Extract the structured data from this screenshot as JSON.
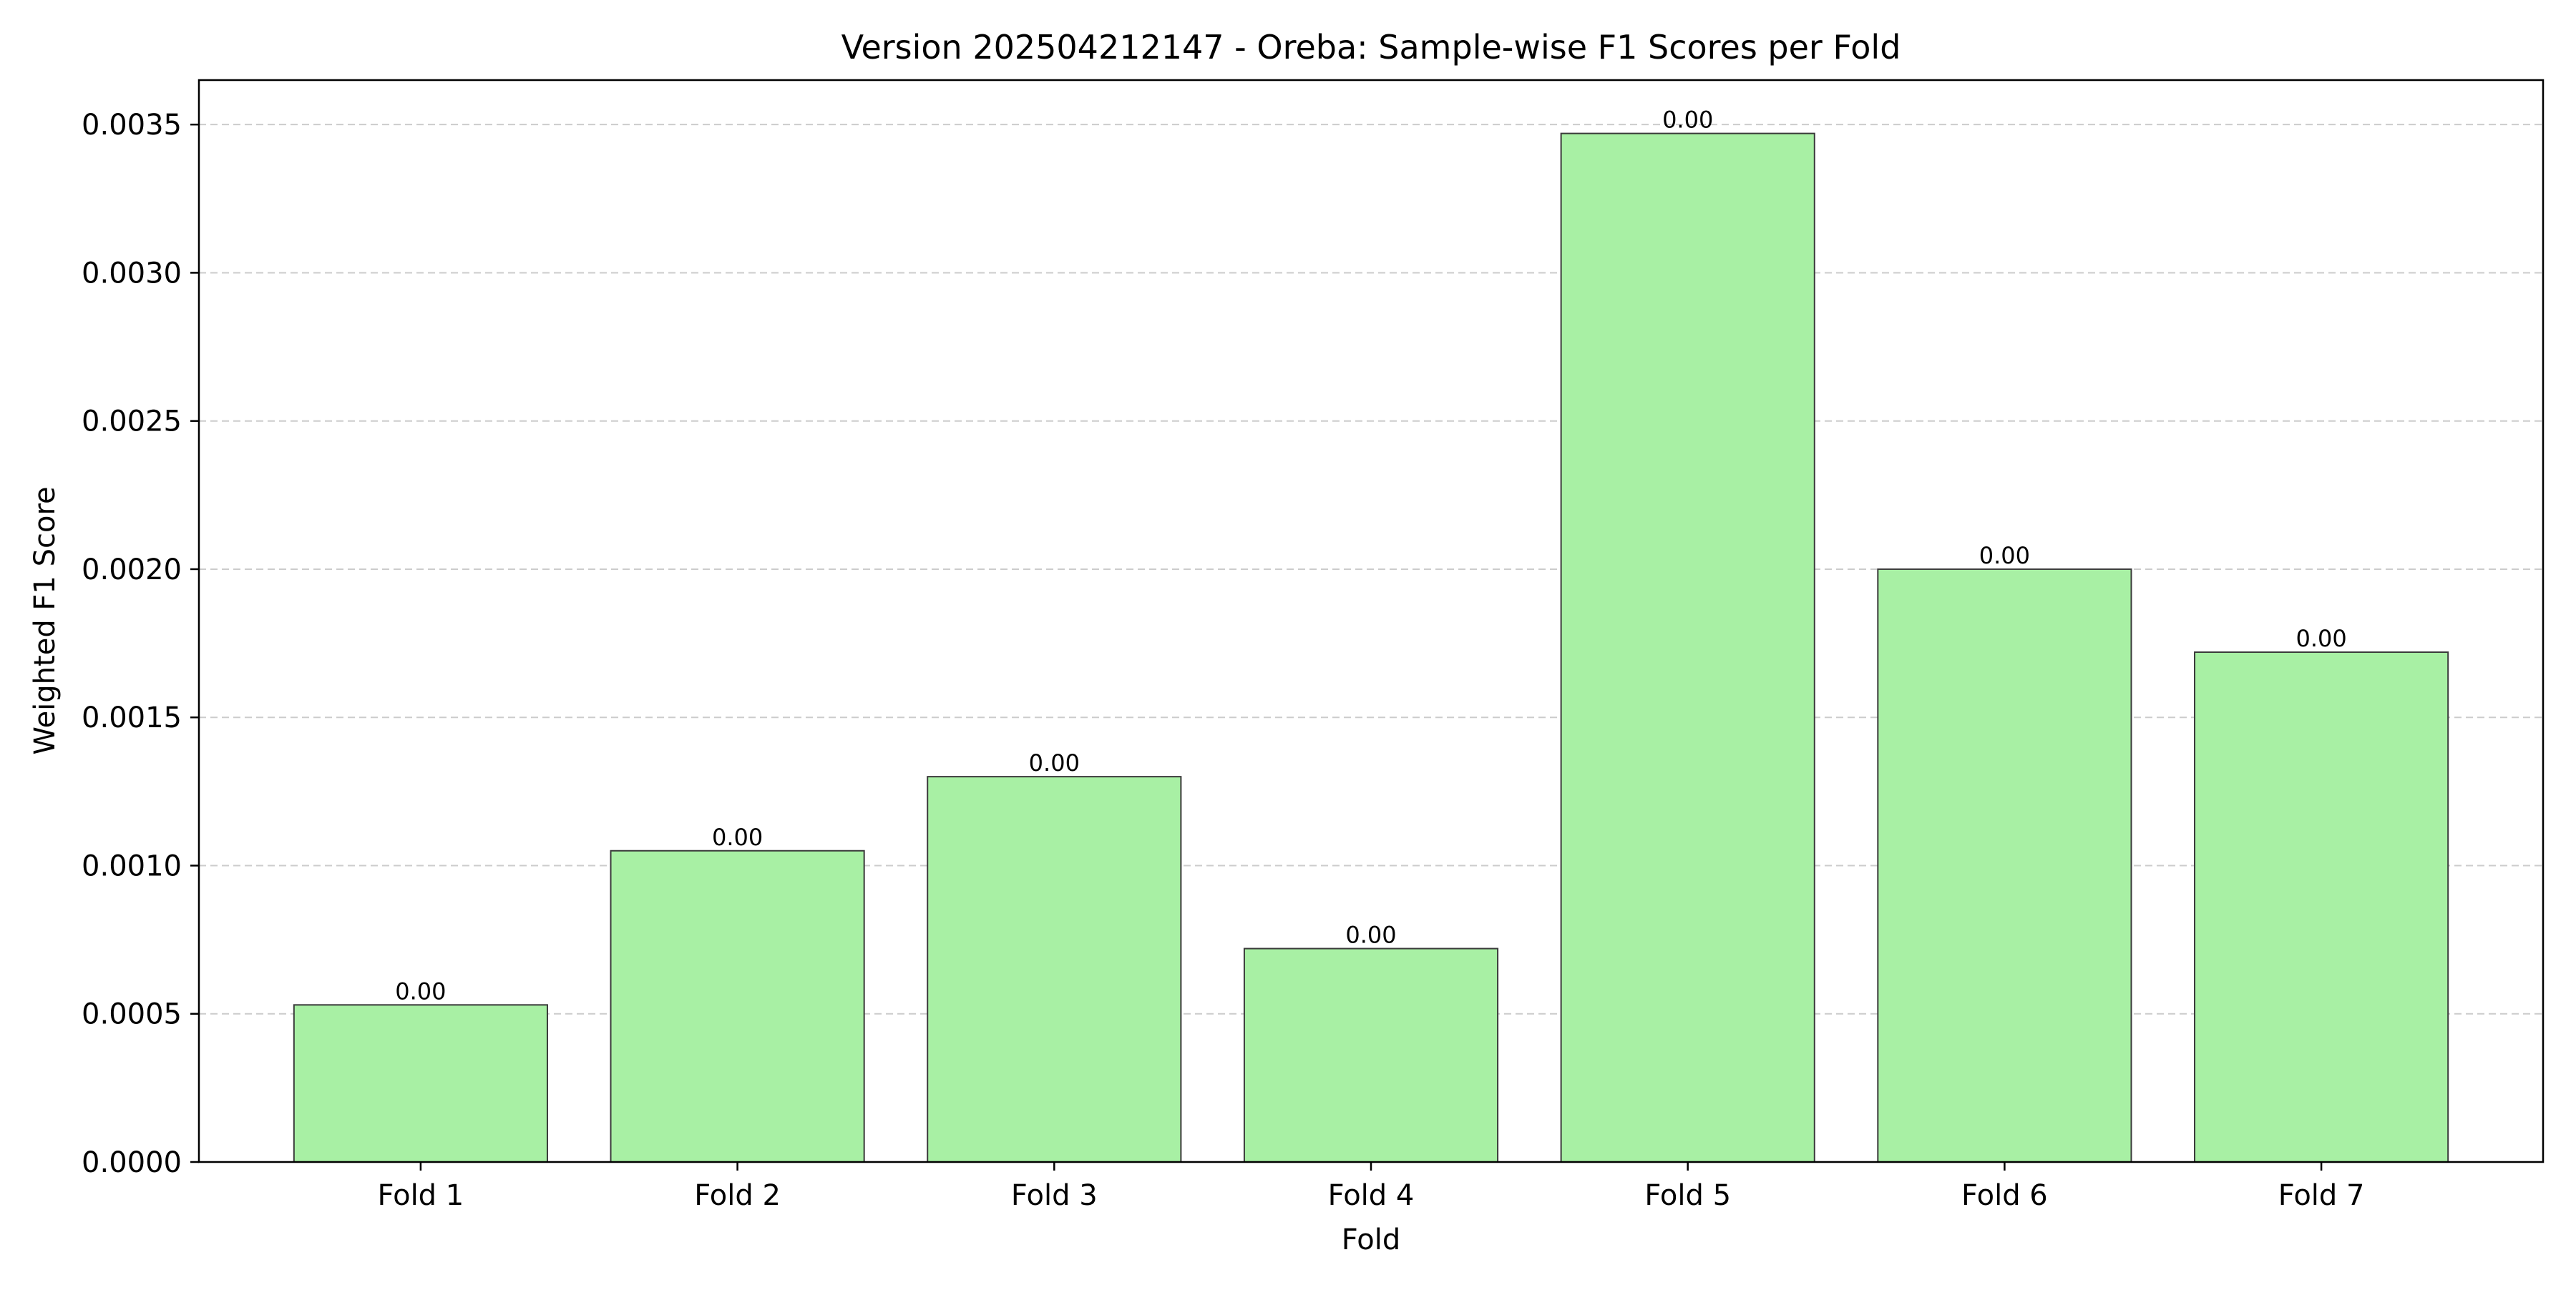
{
  "chart_data": {
    "type": "bar",
    "title": "Version 202504212147 - Oreba: Sample-wise F1 Scores per Fold",
    "xlabel": "Fold",
    "ylabel": "Weighted F1 Score",
    "categories": [
      "Fold 1",
      "Fold 2",
      "Fold 3",
      "Fold 4",
      "Fold 5",
      "Fold 6",
      "Fold 7"
    ],
    "values": [
      0.00053,
      0.00105,
      0.0013,
      0.00072,
      0.00347,
      0.002,
      0.00172
    ],
    "data_labels": [
      "0.00",
      "0.00",
      "0.00",
      "0.00",
      "0.00",
      "0.00",
      "0.00"
    ],
    "ylim": [
      0,
      0.00365
    ],
    "yticks": [
      0,
      0.0005,
      0.001,
      0.0015,
      0.002,
      0.0025,
      0.003,
      0.0035
    ],
    "ytick_labels": [
      "0.0000",
      "0.0005",
      "0.0010",
      "0.0015",
      "0.0020",
      "0.0025",
      "0.0030",
      "0.0035"
    ],
    "grid": "y, dashed",
    "bar_color": "#a8f0a4",
    "bar_edge_color": "#3a3a3a",
    "grid_color": "#cccccc"
  }
}
